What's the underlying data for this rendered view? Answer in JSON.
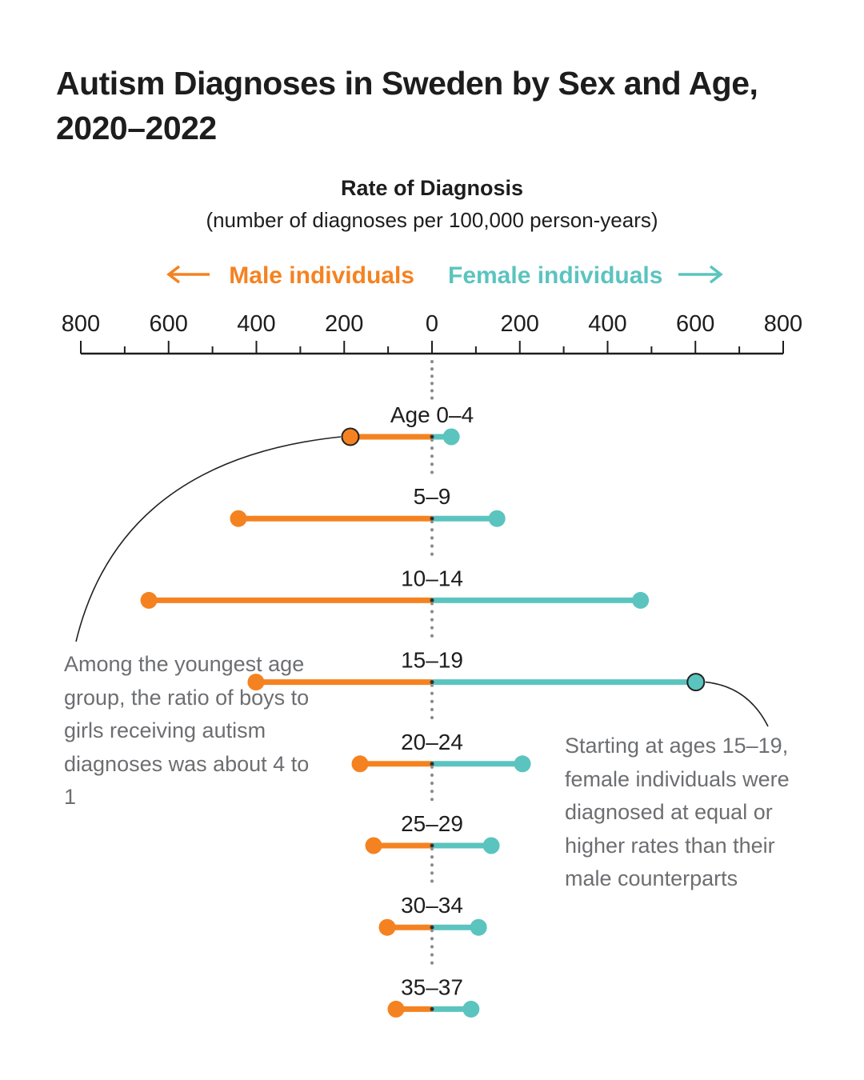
{
  "title": "Autism Diagnoses in Sweden by Sex and Age, 2020–2022",
  "subtitle": "Rate of Diagnosis",
  "subtitle2": "(number of diagnoses per 100,000 person-years)",
  "colors": {
    "male": "#F58220",
    "female": "#5BC4BF",
    "axis": "#1d1d1d",
    "annotation": "#6d6e71",
    "midline": "#8a8a8d"
  },
  "annotations": {
    "left": "Among the youngest age group, the ratio of boys to girls receiving autism diagnoses was about 4 to 1",
    "right": "Starting at ages 15–19, female individuals were diagnosed at equal or higher rates than their male counterparts"
  },
  "chart_data": {
    "type": "dumbbell",
    "title": "Autism Diagnoses in Sweden by Sex and Age, 2020–2022",
    "xlabel": "Rate of Diagnosis (number of diagnoses per 100,000 person-years)",
    "legend": [
      {
        "name": "Male individuals",
        "direction": "left",
        "color": "#F58220"
      },
      {
        "name": "Female individuals",
        "direction": "right",
        "color": "#5BC4BF"
      }
    ],
    "axis": {
      "range": [
        -800,
        800
      ],
      "major_ticks": [
        -800,
        -600,
        -400,
        -200,
        0,
        200,
        400,
        600,
        800
      ],
      "tick_labels": [
        "800",
        "600",
        "400",
        "200",
        "0",
        "200",
        "400",
        "600",
        "800"
      ],
      "minor_step": 100
    },
    "categories": [
      "Age 0–4",
      "5–9",
      "10–14",
      "15–19",
      "20–24",
      "25–29",
      "30–34",
      "35–37"
    ],
    "series": [
      {
        "name": "Male individuals",
        "values": [
          186,
          441,
          645,
          401,
          164,
          133,
          102,
          82
        ]
      },
      {
        "name": "Female individuals",
        "values": [
          44,
          148,
          475,
          601,
          206,
          135,
          106,
          89
        ]
      }
    ],
    "highlighted": [
      {
        "series": "Male individuals",
        "category": "Age 0–4",
        "annotation": "left"
      },
      {
        "series": "Female individuals",
        "category": "15–19",
        "annotation": "right"
      }
    ]
  }
}
